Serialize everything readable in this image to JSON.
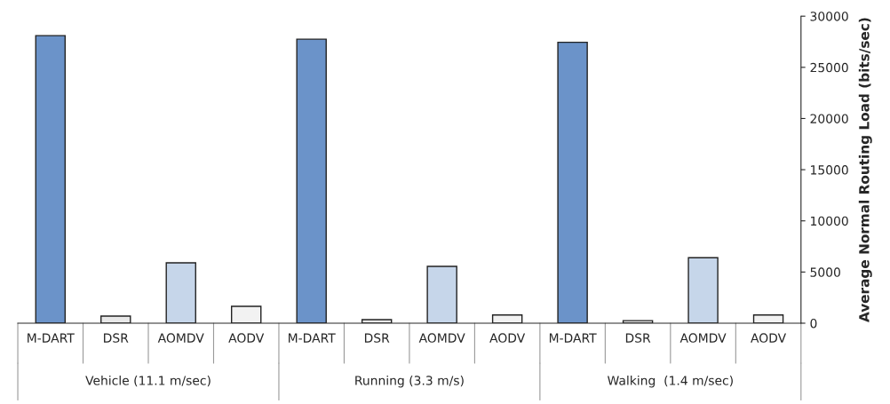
{
  "chart_data": {
    "type": "bar",
    "ylabel": "Average Normal Routing Load (bits/sec)",
    "categories": [
      "M-DART",
      "DSR",
      "AOMDV",
      "AODV",
      "M-DART",
      "DSR",
      "AOMDV",
      "AODV",
      "M-DART",
      "DSR",
      "AOMDV",
      "AODV"
    ],
    "values": [
      28100,
      700,
      5900,
      1650,
      27750,
      350,
      5550,
      800,
      27450,
      250,
      6400,
      800
    ],
    "colors": [
      "#6b93c9",
      "#e8e8e8",
      "#c6d6ea",
      "#f2f2f2",
      "#6b93c9",
      "#e8e8e8",
      "#c6d6ea",
      "#f2f2f2",
      "#6b93c9",
      "#e8e8e8",
      "#c6d6ea",
      "#f2f2f2"
    ],
    "annotations": [
      "Vehicle (11.1 m/sec)",
      "Running (3.3 m/s)",
      "Walking  (1.4 m/sec)"
    ],
    "ylim": [
      0,
      30000
    ],
    "yticks": [
      0,
      5000,
      10000,
      15000,
      20000,
      25000,
      30000
    ],
    "grid": false
  }
}
